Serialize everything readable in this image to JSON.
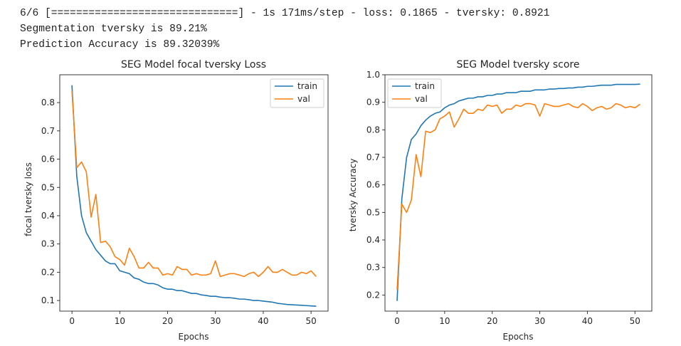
{
  "console": {
    "lines": [
      "6/6 [==============================] - 1s 171ms/step - loss: 0.1865 - tversky: 0.8921",
      "Segmentation tversky is 89.21%",
      "Prediction Accuracy is 89.32039%"
    ]
  },
  "colors": {
    "train": "#1f77b4",
    "val": "#ff7f0e"
  },
  "chart_data": [
    {
      "type": "line",
      "title": "SEG Model focal tversky Loss",
      "xlabel": "Epochs",
      "ylabel": "focal tversky loss",
      "xlim": [
        -2.55,
        53.55
      ],
      "ylim": [
        0.0625,
        0.8985
      ],
      "xticks": [
        0,
        10,
        20,
        30,
        40,
        50
      ],
      "yticks": [
        0.1,
        0.2,
        0.3,
        0.4,
        0.5,
        0.6,
        0.7,
        0.8
      ],
      "legend": "top-right",
      "grid": false,
      "x": [
        0,
        1,
        2,
        3,
        4,
        5,
        6,
        7,
        8,
        9,
        10,
        11,
        12,
        13,
        14,
        15,
        16,
        17,
        18,
        19,
        20,
        21,
        22,
        23,
        24,
        25,
        26,
        27,
        28,
        29,
        30,
        31,
        32,
        33,
        34,
        35,
        36,
        37,
        38,
        39,
        40,
        41,
        42,
        43,
        44,
        45,
        46,
        47,
        48,
        49,
        50,
        51
      ],
      "series": [
        {
          "name": "train",
          "values": [
            0.86,
            0.54,
            0.4,
            0.34,
            0.31,
            0.28,
            0.26,
            0.24,
            0.23,
            0.23,
            0.205,
            0.2,
            0.195,
            0.18,
            0.175,
            0.165,
            0.16,
            0.16,
            0.155,
            0.145,
            0.14,
            0.14,
            0.135,
            0.135,
            0.13,
            0.125,
            0.125,
            0.12,
            0.118,
            0.115,
            0.115,
            0.112,
            0.11,
            0.11,
            0.108,
            0.105,
            0.105,
            0.103,
            0.1,
            0.1,
            0.098,
            0.096,
            0.094,
            0.09,
            0.088,
            0.086,
            0.085,
            0.084,
            0.083,
            0.082,
            0.081,
            0.08
          ]
        },
        {
          "name": "val",
          "values": [
            0.84,
            0.57,
            0.59,
            0.555,
            0.395,
            0.475,
            0.305,
            0.31,
            0.29,
            0.255,
            0.245,
            0.225,
            0.285,
            0.255,
            0.215,
            0.215,
            0.235,
            0.215,
            0.215,
            0.19,
            0.195,
            0.19,
            0.22,
            0.21,
            0.21,
            0.19,
            0.195,
            0.19,
            0.19,
            0.195,
            0.24,
            0.185,
            0.19,
            0.195,
            0.195,
            0.19,
            0.185,
            0.195,
            0.2,
            0.185,
            0.2,
            0.22,
            0.2,
            0.2,
            0.21,
            0.2,
            0.19,
            0.19,
            0.2,
            0.195,
            0.205,
            0.186
          ]
        }
      ]
    },
    {
      "type": "line",
      "title": "SEG Model tversky score",
      "xlabel": "Epochs",
      "ylabel": "tversky Accuracy",
      "xlim": [
        -2.55,
        53.55
      ],
      "ylim": [
        0.1415,
        1.0
      ],
      "xticks": [
        0,
        10,
        20,
        30,
        40,
        50
      ],
      "yticks": [
        0.2,
        0.3,
        0.4,
        0.5,
        0.6,
        0.7,
        0.8,
        0.9,
        1.0
      ],
      "legend": "top-left",
      "grid": false,
      "x": [
        0,
        1,
        2,
        3,
        4,
        5,
        6,
        7,
        8,
        9,
        10,
        11,
        12,
        13,
        14,
        15,
        16,
        17,
        18,
        19,
        20,
        21,
        22,
        23,
        24,
        25,
        26,
        27,
        28,
        29,
        30,
        31,
        32,
        33,
        34,
        35,
        36,
        37,
        38,
        39,
        40,
        41,
        42,
        43,
        44,
        45,
        46,
        47,
        48,
        49,
        50,
        51
      ],
      "series": [
        {
          "name": "train",
          "values": [
            0.18,
            0.55,
            0.7,
            0.765,
            0.785,
            0.815,
            0.835,
            0.85,
            0.86,
            0.865,
            0.88,
            0.89,
            0.895,
            0.905,
            0.91,
            0.915,
            0.915,
            0.92,
            0.92,
            0.925,
            0.925,
            0.93,
            0.93,
            0.935,
            0.935,
            0.935,
            0.94,
            0.94,
            0.94,
            0.945,
            0.945,
            0.945,
            0.948,
            0.948,
            0.95,
            0.95,
            0.952,
            0.952,
            0.955,
            0.955,
            0.958,
            0.958,
            0.96,
            0.962,
            0.962,
            0.962,
            0.965,
            0.965,
            0.965,
            0.965,
            0.965,
            0.966
          ]
        },
        {
          "name": "val",
          "values": [
            0.22,
            0.53,
            0.5,
            0.545,
            0.71,
            0.63,
            0.795,
            0.79,
            0.8,
            0.84,
            0.85,
            0.865,
            0.81,
            0.84,
            0.875,
            0.86,
            0.86,
            0.875,
            0.87,
            0.89,
            0.885,
            0.89,
            0.86,
            0.875,
            0.875,
            0.89,
            0.885,
            0.895,
            0.895,
            0.89,
            0.85,
            0.895,
            0.89,
            0.885,
            0.885,
            0.89,
            0.895,
            0.885,
            0.88,
            0.895,
            0.885,
            0.87,
            0.88,
            0.885,
            0.875,
            0.88,
            0.895,
            0.89,
            0.88,
            0.885,
            0.88,
            0.892
          ]
        }
      ]
    }
  ]
}
